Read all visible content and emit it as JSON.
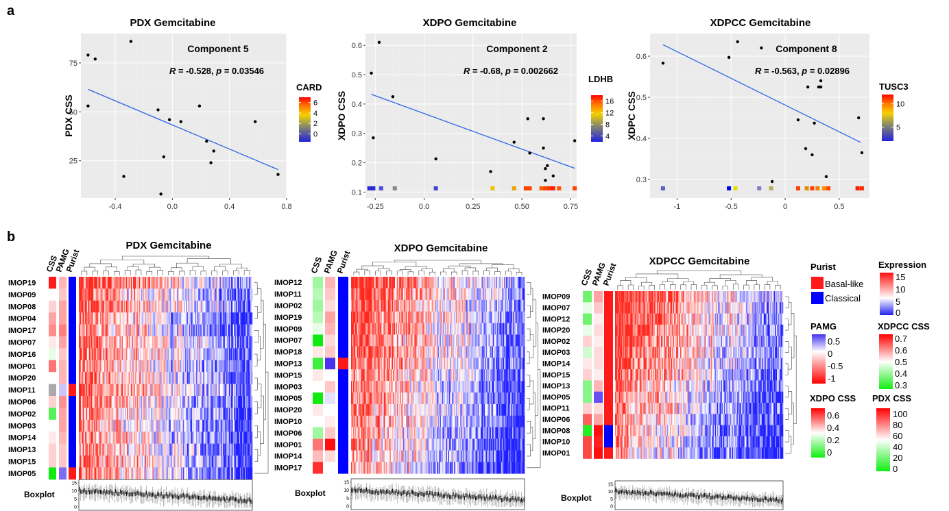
{
  "panel_labels": {
    "a": "a",
    "b": "b"
  },
  "scatter_axis_titles": {
    "pdx": "PDX CSS",
    "xdpo": "XDPO CSS",
    "xdpcc": "XDPC CSS"
  },
  "heatmap_meta": {
    "ann_labels": [
      "CSS",
      "PAMG",
      "Purist"
    ],
    "boxplot_label": "Boxplot",
    "boxplot_ticks": [
      "15",
      "10",
      "5",
      "0"
    ]
  },
  "legends": {
    "purist": {
      "title": "Purist",
      "entries": [
        {
          "label": "Basal-like",
          "color": "#ff1a1a"
        },
        {
          "label": "Classical",
          "color": "#0000ff"
        }
      ]
    },
    "expression": {
      "title": "Expression",
      "ticks": [
        "15",
        "10",
        "5",
        "0"
      ]
    },
    "pamg": {
      "title": "PAMG",
      "ticks": [
        "0.5",
        "0",
        "-0.5",
        "-1"
      ]
    },
    "xdpcc_css": {
      "title": "XDPCC CSS",
      "ticks": [
        "0.7",
        "0.6",
        "0.5",
        "0.4",
        "0.3"
      ]
    },
    "xdpo_css": {
      "title": "XDPO CSS",
      "ticks": [
        "0.6",
        "0.4",
        "0.2",
        "0"
      ]
    },
    "pdx_css": {
      "title": "PDX CSS",
      "ticks": [
        "100",
        "80",
        "60",
        "40",
        "20",
        "0"
      ]
    }
  },
  "chart_data": [
    {
      "type": "scatter",
      "title": "PDX Gemcitabine",
      "ylabel": "PDX CSS",
      "annotation_title": "Component 5",
      "stat": {
        "R_label": "R",
        "r_text": " = -0.528, ",
        "p_label": "p",
        "p_text": " = 0.03546"
      },
      "xlim": [
        -0.64,
        0.8
      ],
      "ylim": [
        6,
        90
      ],
      "xticks": [
        -0.4,
        0.0,
        0.4,
        0.8
      ],
      "xtick_labels": [
        "-0.4",
        "0.0",
        "0.4",
        "0.8"
      ],
      "yticks": [
        25,
        50,
        75
      ],
      "ytick_labels": [
        "25",
        "50",
        "75"
      ],
      "points": [
        [
          -0.59,
          79
        ],
        [
          -0.54,
          77
        ],
        [
          -0.29,
          86
        ],
        [
          -0.59,
          53
        ],
        [
          -0.1,
          51
        ],
        [
          -0.02,
          46
        ],
        [
          0.06,
          45
        ],
        [
          0.19,
          53
        ],
        [
          0.24,
          35
        ],
        [
          0.29,
          30
        ],
        [
          0.27,
          24
        ],
        [
          -0.34,
          17
        ],
        [
          -0.06,
          27
        ],
        [
          -0.08,
          8
        ],
        [
          0.58,
          45
        ],
        [
          0.74,
          18
        ]
      ],
      "fit": [
        [
          -0.59,
          61.5
        ],
        [
          0.74,
          20.5
        ]
      ],
      "colorbar": {
        "title": "CARD",
        "ticks": [
          6,
          4,
          2,
          0
        ],
        "tick_labels": [
          "6",
          "4",
          "2",
          "0"
        ],
        "range": [
          -1.5,
          7
        ]
      },
      "rug": []
    },
    {
      "type": "scatter",
      "title": "XDPO Gemcitabine",
      "ylabel": "XDPO CSS",
      "annotation_title": "Component 2",
      "stat": {
        "R_label": "R",
        "r_text": " = -0.68, ",
        "p_label": "p",
        "p_text": " = 0.002662"
      },
      "xlim": [
        -0.3,
        0.78
      ],
      "ylim": [
        0.08,
        0.64
      ],
      "xticks": [
        -0.25,
        0.0,
        0.25,
        0.5,
        0.75
      ],
      "xtick_labels": [
        "-0.25",
        "0.0",
        "0.25",
        "0.50",
        "0.75"
      ],
      "yticks": [
        0.1,
        0.2,
        0.3,
        0.4,
        0.5,
        0.6
      ],
      "ytick_labels": [
        "0.1",
        "0.2",
        "0.3",
        "0.4",
        "0.5",
        "0.6"
      ],
      "points": [
        [
          -0.27,
          0.505
        ],
        [
          -0.23,
          0.61
        ],
        [
          -0.16,
          0.425
        ],
        [
          -0.26,
          0.285
        ],
        [
          0.06,
          0.213
        ],
        [
          0.34,
          0.17
        ],
        [
          0.46,
          0.27
        ],
        [
          0.53,
          0.35
        ],
        [
          0.54,
          0.233
        ],
        [
          0.61,
          0.35
        ],
        [
          0.61,
          0.25
        ],
        [
          0.63,
          0.19
        ],
        [
          0.62,
          0.18
        ],
        [
          0.66,
          0.155
        ],
        [
          0.62,
          0.14
        ],
        [
          0.77,
          0.275
        ]
      ],
      "fit": [
        [
          -0.27,
          0.433
        ],
        [
          0.77,
          0.181
        ]
      ],
      "colorbar": {
        "title": "LDHB",
        "ticks": [
          16,
          12,
          8,
          4
        ],
        "tick_labels": [
          "16",
          "12",
          "8",
          "4"
        ],
        "range": [
          2,
          18
        ]
      },
      "rug": [
        [
          -0.28,
          "#2b2bd0"
        ],
        [
          -0.26,
          "#2b2bd0"
        ],
        [
          -0.22,
          "#5050d8"
        ],
        [
          -0.15,
          "#888888"
        ],
        [
          0.06,
          "#4444d0"
        ],
        [
          0.35,
          "#f0c000"
        ],
        [
          0.46,
          "#f0a000"
        ],
        [
          0.52,
          "#ff4500"
        ],
        [
          0.54,
          "#ff4500"
        ],
        [
          0.6,
          "#ff6000"
        ],
        [
          0.62,
          "#ff4500"
        ],
        [
          0.64,
          "#ff3000"
        ],
        [
          0.66,
          "#ff2000"
        ],
        [
          0.69,
          "#ff5500"
        ],
        [
          0.77,
          "#ff4500"
        ]
      ]
    },
    {
      "type": "scatter",
      "title": "XDPCC Gemcitabine",
      "ylabel": "XDPC CSS",
      "annotation_title": "Component 8",
      "stat": {
        "R_label": "R",
        "r_text": " = -0.563, ",
        "p_label": "p",
        "p_text": " = 0.02896"
      },
      "xlim": [
        -1.25,
        0.78
      ],
      "ylim": [
        0.255,
        0.655
      ],
      "xticks": [
        -1.0,
        -0.5,
        0.0,
        0.5
      ],
      "xtick_labels": [
        "-1",
        "-0.5",
        "0",
        "0.5"
      ],
      "yticks": [
        0.3,
        0.4,
        0.5,
        0.6
      ],
      "ytick_labels": [
        "0.3",
        "0.4",
        "0.5",
        "0.6"
      ],
      "points": [
        [
          -1.13,
          0.583
        ],
        [
          -0.44,
          0.635
        ],
        [
          -0.52,
          0.597
        ],
        [
          -0.22,
          0.62
        ],
        [
          0.21,
          0.525
        ],
        [
          0.31,
          0.525
        ],
        [
          0.33,
          0.525
        ],
        [
          0.12,
          0.445
        ],
        [
          0.27,
          0.437
        ],
        [
          0.19,
          0.375
        ],
        [
          0.25,
          0.36
        ],
        [
          0.38,
          0.307
        ],
        [
          -0.12,
          0.295
        ],
        [
          0.68,
          0.45
        ],
        [
          0.71,
          0.365
        ],
        [
          0.33,
          0.54
        ]
      ],
      "fit": [
        [
          -1.13,
          0.628
        ],
        [
          0.7,
          0.39
        ]
      ],
      "colorbar": {
        "title": "TUSC3",
        "ticks": [
          10,
          5
        ],
        "tick_labels": [
          "10",
          "5"
        ],
        "range": [
          2,
          12
        ]
      },
      "rug": [
        [
          -1.13,
          "#6060c0"
        ],
        [
          -0.52,
          "#0000ff"
        ],
        [
          -0.46,
          "#e0e000"
        ],
        [
          -0.24,
          "#8080c0"
        ],
        [
          -0.13,
          "#b0b060"
        ],
        [
          0.12,
          "#ff4000"
        ],
        [
          0.2,
          "#e09000"
        ],
        [
          0.25,
          "#ff4000"
        ],
        [
          0.3,
          "#f08000"
        ],
        [
          0.36,
          "#ff9000"
        ],
        [
          0.4,
          "#ff4500"
        ],
        [
          0.67,
          "#ff2000"
        ],
        [
          0.71,
          "#ff3000"
        ]
      ]
    },
    {
      "type": "heatmap",
      "title": "PDX Gemcitabine",
      "rows": [
        "IMOP19",
        "IMOP09",
        "IMOP08",
        "IMOP04",
        "IMOP17",
        "IMOP07",
        "IMOP16",
        "IMOP01",
        "IMOP20",
        "IMOP11",
        "IMOP06",
        "IMOP02",
        "IMOP03",
        "IMOP14",
        "IMOP13",
        "IMOP15",
        "IMOP05"
      ],
      "css": [
        1.0,
        0.5,
        0.6,
        0.7,
        0.75,
        0.55,
        0.45,
        0.8,
        0.5,
        0.5,
        0.6,
        0.15,
        0.5,
        0.55,
        0.6,
        0.6,
        0.0
      ],
      "css_gray": [
        false,
        false,
        false,
        false,
        false,
        false,
        false,
        false,
        false,
        true,
        false,
        false,
        false,
        false,
        false,
        false,
        false
      ],
      "pamg": [
        0.55,
        0.5,
        0.6,
        0.6,
        0.7,
        0.6,
        0.5,
        0.55,
        0.55,
        0.25,
        0.65,
        0.6,
        0.6,
        0.55,
        0.5,
        0.5,
        0.1
      ],
      "purist": [
        "C",
        "C",
        "C",
        "C",
        "C",
        "C",
        "C",
        "C",
        "C",
        "B",
        "C",
        "C",
        "C",
        "C",
        "C",
        "C",
        "B"
      ],
      "bias": [
        0.25,
        0.0,
        0.1,
        -0.1,
        -0.1,
        0.1,
        0.05,
        -0.05,
        0.0,
        0.15,
        -0.05,
        -0.1,
        -0.15,
        -0.1,
        -0.1,
        0.0,
        -0.1
      ]
    },
    {
      "type": "heatmap",
      "title": "XDPO Gemcitabine",
      "rows": [
        "IMOP12",
        "IMOP11",
        "IMOP02",
        "IMOP19",
        "IMOP09",
        "IMOP07",
        "IMOP18",
        "IMOP13",
        "IMOP15",
        "IMOP03",
        "IMOP05",
        "IMOP20",
        "IMOP10",
        "IMOP06",
        "IMOP01",
        "IMOP14",
        "IMOP17"
      ],
      "css": [
        0.3,
        0.35,
        0.3,
        0.35,
        0.45,
        0.0,
        0.55,
        0.1,
        0.55,
        0.5,
        0.0,
        0.55,
        0.5,
        0.3,
        0.8,
        0.65,
        0.95
      ],
      "css_gray": [
        false,
        false,
        false,
        false,
        false,
        false,
        false,
        false,
        false,
        false,
        false,
        false,
        false,
        false,
        false,
        false,
        false
      ],
      "pamg": [
        0.55,
        0.5,
        0.45,
        0.6,
        0.55,
        0.45,
        0.5,
        0.0,
        0.35,
        0.5,
        0.3,
        0.35,
        0.4,
        0.5,
        1.0,
        0.45,
        0.35
      ],
      "purist": [
        "C",
        "C",
        "C",
        "C",
        "C",
        "C",
        "C",
        "B",
        "C",
        "C",
        "C",
        "C",
        "C",
        "C",
        "C",
        "C",
        "C"
      ],
      "bias": [
        0.3,
        0.25,
        0.2,
        0.2,
        0.15,
        0.1,
        0.1,
        0.05,
        0.0,
        -0.05,
        -0.1,
        -0.1,
        -0.15,
        -0.2,
        -0.25,
        -0.25,
        -0.3
      ]
    },
    {
      "type": "heatmap",
      "title": "XDPCC Gemcitabine",
      "rows": [
        "IMOP09",
        "IMOP07",
        "IMOP12",
        "IMOP20",
        "IMOP02",
        "IMOP03",
        "IMOP14",
        "IMOP15",
        "IMOP13",
        "IMOP05",
        "IMOP11",
        "IMOP06",
        "IMOP08",
        "IMOP10",
        "IMOP01"
      ],
      "css": [
        0.2,
        0.45,
        0.2,
        0.45,
        0.6,
        0.4,
        0.55,
        0.6,
        0.25,
        0.25,
        0.6,
        0.85,
        0.05,
        0.9,
        0.9
      ],
      "css_gray": [
        false,
        false,
        false,
        false,
        false,
        false,
        false,
        false,
        false,
        false,
        false,
        false,
        false,
        false,
        false
      ],
      "pamg": [
        0.6,
        0.5,
        0.4,
        0.45,
        0.4,
        0.45,
        0.45,
        0.4,
        0.55,
        0.05,
        0.45,
        0.6,
        1.0,
        0.95,
        1.0
      ],
      "purist": [
        "B",
        "B",
        "B",
        "B",
        "B",
        "B",
        "B",
        "B",
        "B",
        "B",
        "B",
        "B",
        "C",
        "C",
        "B"
      ],
      "bias": [
        0.35,
        0.3,
        0.25,
        0.25,
        0.2,
        0.15,
        0.1,
        0.05,
        -0.05,
        -0.1,
        -0.1,
        -0.2,
        -0.25,
        -0.3,
        -0.35
      ]
    }
  ]
}
